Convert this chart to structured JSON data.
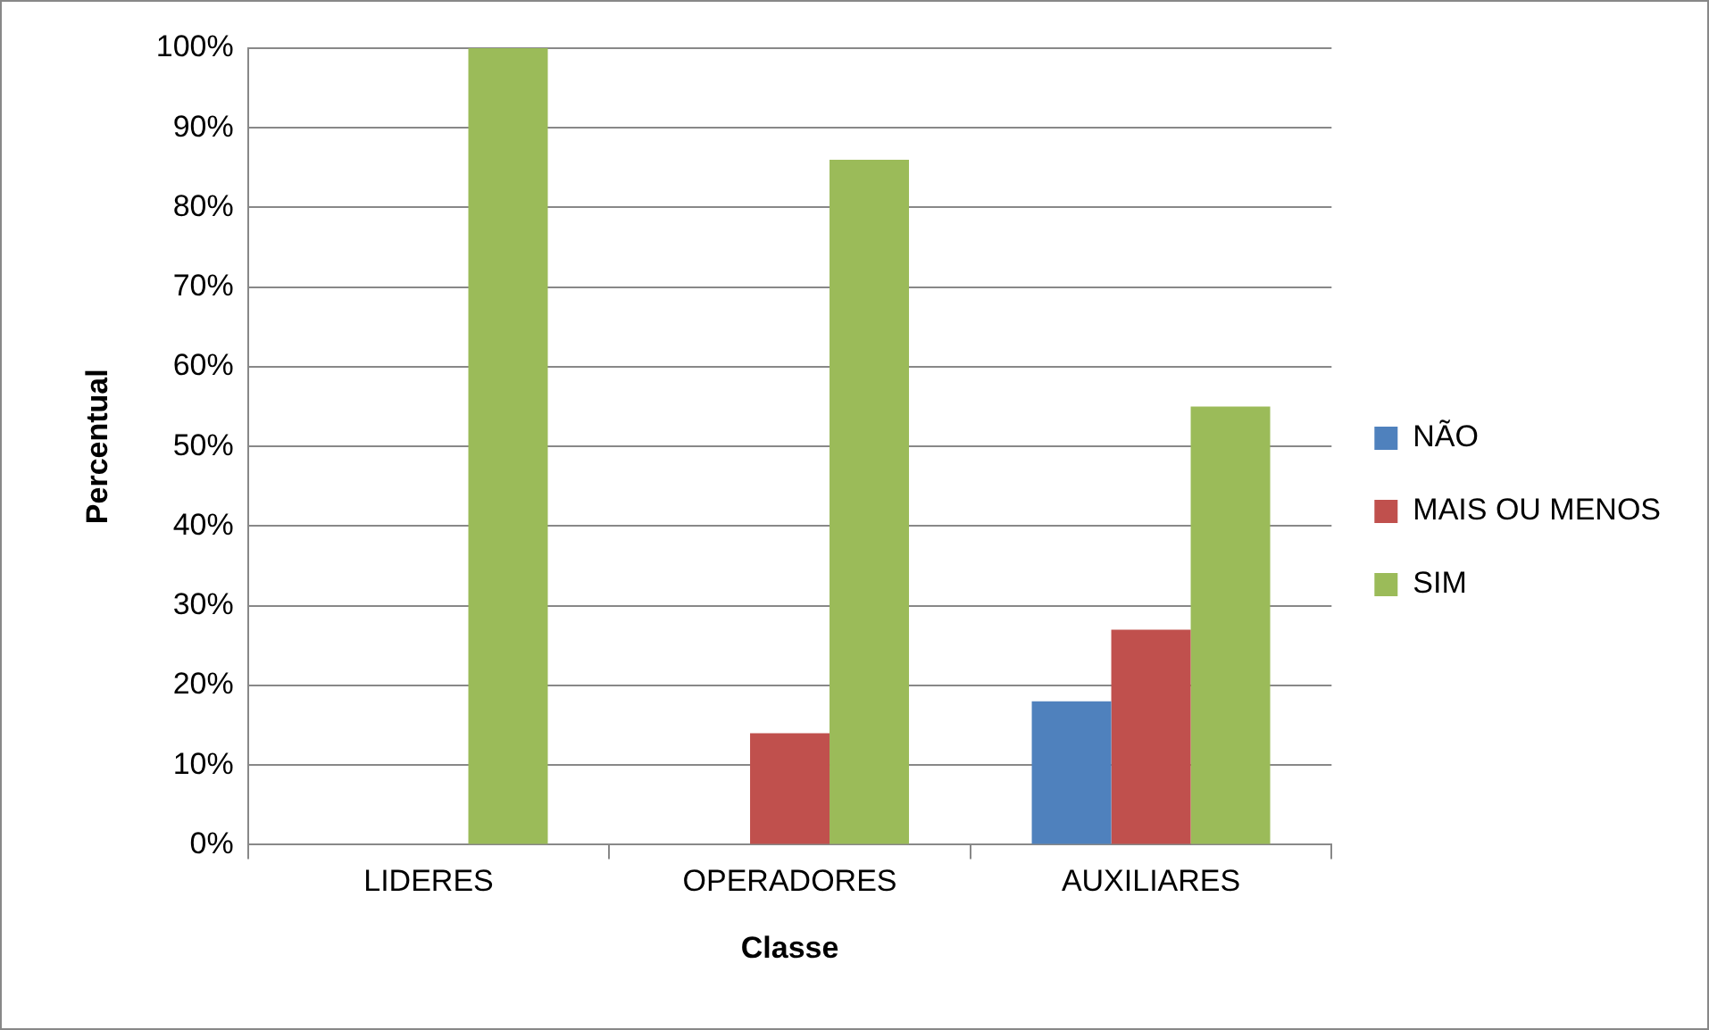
{
  "chart_data": {
    "type": "bar",
    "xlabel": "Classe",
    "ylabel": "Percentual",
    "categories": [
      "LIDERES",
      "OPERADORES",
      "AUXILIARES"
    ],
    "series": [
      {
        "name": "NÃO",
        "color": "#4f81bd",
        "values": [
          0,
          0,
          18
        ]
      },
      {
        "name": "MAIS OU MENOS",
        "color": "#c0504d",
        "values": [
          0,
          14,
          27
        ]
      },
      {
        "name": "SIM",
        "color": "#9bbb59",
        "values": [
          100,
          86,
          55
        ]
      }
    ],
    "ylim": [
      0,
      100
    ],
    "yticks": [
      {
        "value": 0,
        "label": "0%"
      },
      {
        "value": 10,
        "label": "10%"
      },
      {
        "value": 20,
        "label": "20%"
      },
      {
        "value": 30,
        "label": "30%"
      },
      {
        "value": 40,
        "label": "40%"
      },
      {
        "value": 50,
        "label": "50%"
      },
      {
        "value": 60,
        "label": "60%"
      },
      {
        "value": 70,
        "label": "70%"
      },
      {
        "value": 80,
        "label": "80%"
      },
      {
        "value": 90,
        "label": "90%"
      },
      {
        "value": 100,
        "label": "100%"
      }
    ],
    "grid": "y",
    "legend": "right"
  }
}
